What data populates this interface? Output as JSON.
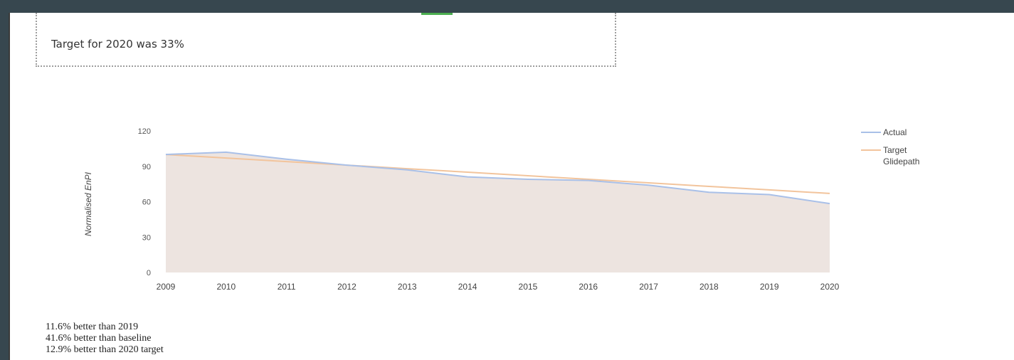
{
  "callout": {
    "text": "Target for 2020 was 33%"
  },
  "notes": [
    "11.6% better than 2019",
    "41.6% better than baseline",
    "12.9% better than 2020 target"
  ],
  "colors": {
    "actual": "#a9c0e8",
    "target": "#f2c49c",
    "area": "#ede4e0",
    "background": "#37474f"
  },
  "chart_data": {
    "type": "line",
    "title": "",
    "xlabel": "",
    "ylabel": "Normalised EnPI",
    "x": [
      "2009",
      "2010",
      "2011",
      "2012",
      "2013",
      "2014",
      "2015",
      "2016",
      "2017",
      "2018",
      "2019",
      "2020"
    ],
    "yticks": [
      0,
      30,
      60,
      90,
      120
    ],
    "ylim": [
      0,
      120
    ],
    "legend_position": "right",
    "series": [
      {
        "name": "Actual",
        "values": [
          100,
          102,
          96,
          91,
          87,
          81,
          79,
          78,
          74,
          68,
          66,
          58.4
        ]
      },
      {
        "name": "Target Glidepath",
        "values": [
          100,
          97,
          94,
          91,
          88,
          85,
          82,
          79,
          76,
          73,
          70,
          67
        ]
      }
    ]
  }
}
